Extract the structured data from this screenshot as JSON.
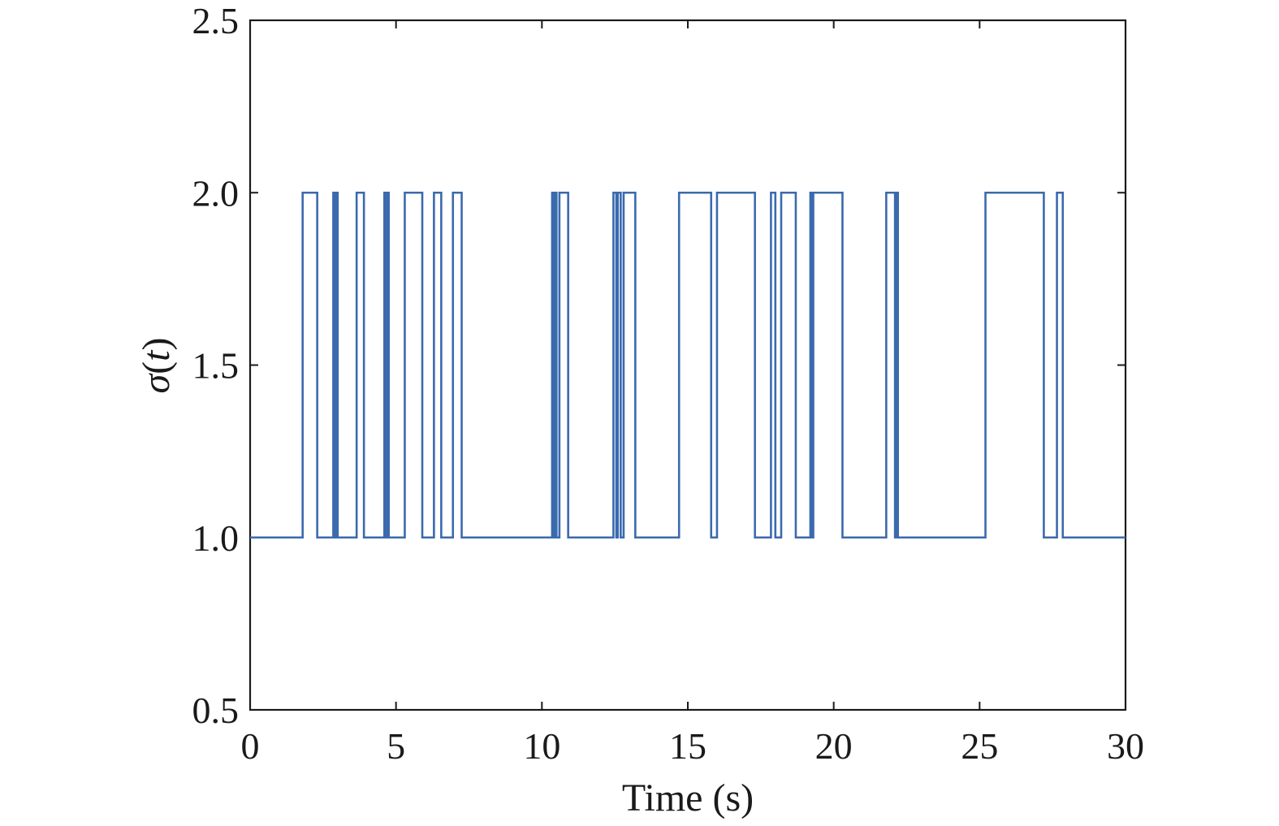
{
  "chart_data": {
    "type": "line",
    "step": true,
    "xlabel": "Time (s)",
    "ylabel": "σ(t)",
    "xlim": [
      0,
      30
    ],
    "ylim": [
      0.5,
      2.5
    ],
    "xticks": [
      0,
      5,
      10,
      15,
      20,
      25,
      30
    ],
    "xtick_labels": [
      "0",
      "5",
      "10",
      "15",
      "20",
      "25",
      "30"
    ],
    "yticks": [
      0.5,
      1.0,
      1.5,
      2.0,
      2.5
    ],
    "ytick_labels": [
      "0.5",
      "1.0",
      "1.5",
      "2.0",
      "2.5"
    ],
    "grid": false,
    "legend": "none",
    "series": [
      {
        "color": "#3b6aae",
        "x": [
          0,
          1.8,
          2.3,
          2.85,
          2.9,
          2.95,
          3.0,
          3.65,
          3.9,
          4.6,
          4.65,
          4.7,
          4.75,
          5.3,
          5.9,
          6.3,
          6.55,
          6.95,
          7.25,
          10.35,
          10.4,
          10.45,
          10.5,
          10.6,
          10.9,
          12.45,
          12.55,
          12.6,
          12.7,
          12.8,
          13.2,
          14.7,
          15.8,
          16.0,
          17.3,
          17.85,
          18.0,
          18.2,
          18.7,
          19.2,
          19.25,
          19.3,
          20.3,
          21.8,
          22.1,
          22.15,
          22.2,
          25.2,
          27.2,
          27.65,
          27.85,
          30
        ],
        "y": [
          1,
          2,
          1,
          2,
          1,
          2,
          1,
          2,
          1,
          2,
          1,
          2,
          1,
          2,
          1,
          2,
          1,
          2,
          1,
          2,
          1,
          2,
          1,
          2,
          1,
          2,
          1,
          2,
          1,
          2,
          1,
          2,
          1,
          2,
          1,
          2,
          1,
          2,
          1,
          2,
          1,
          2,
          1,
          2,
          1,
          2,
          1,
          2,
          1,
          2,
          1,
          1
        ]
      }
    ]
  }
}
